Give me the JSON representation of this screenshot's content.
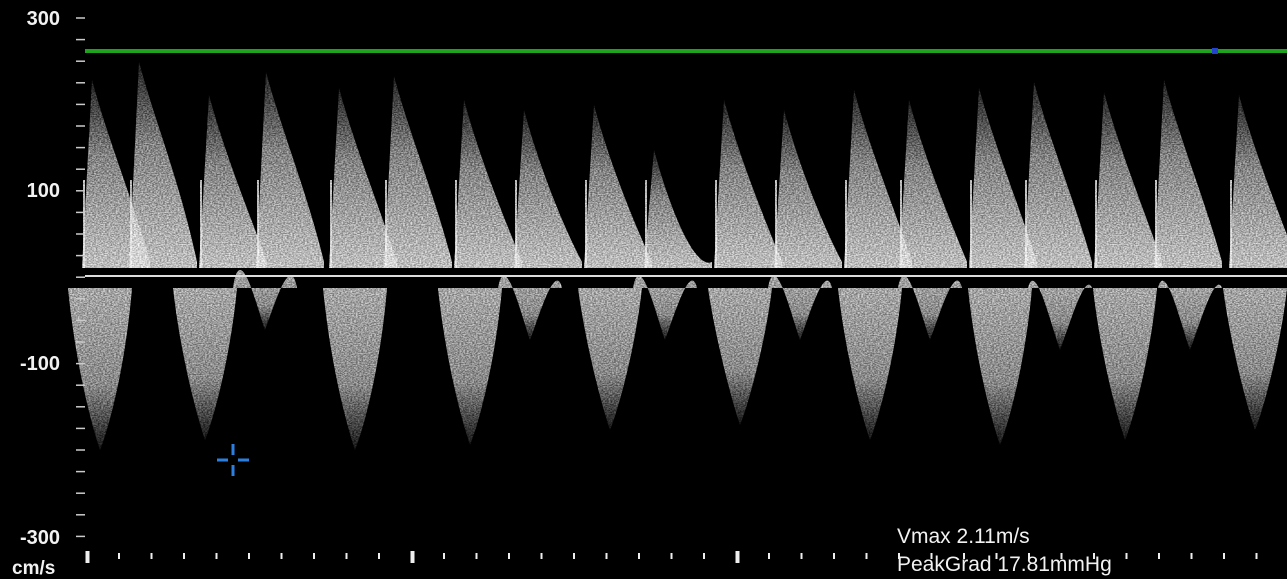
{
  "scale": {
    "ticks": [
      "300",
      "100",
      "-100",
      "-300"
    ],
    "unit": "cm/s"
  },
  "measurements": {
    "vmax": "Vmax 2.11m/s",
    "peak_gradient": "PeakGrad 17.81mmHg"
  }
}
